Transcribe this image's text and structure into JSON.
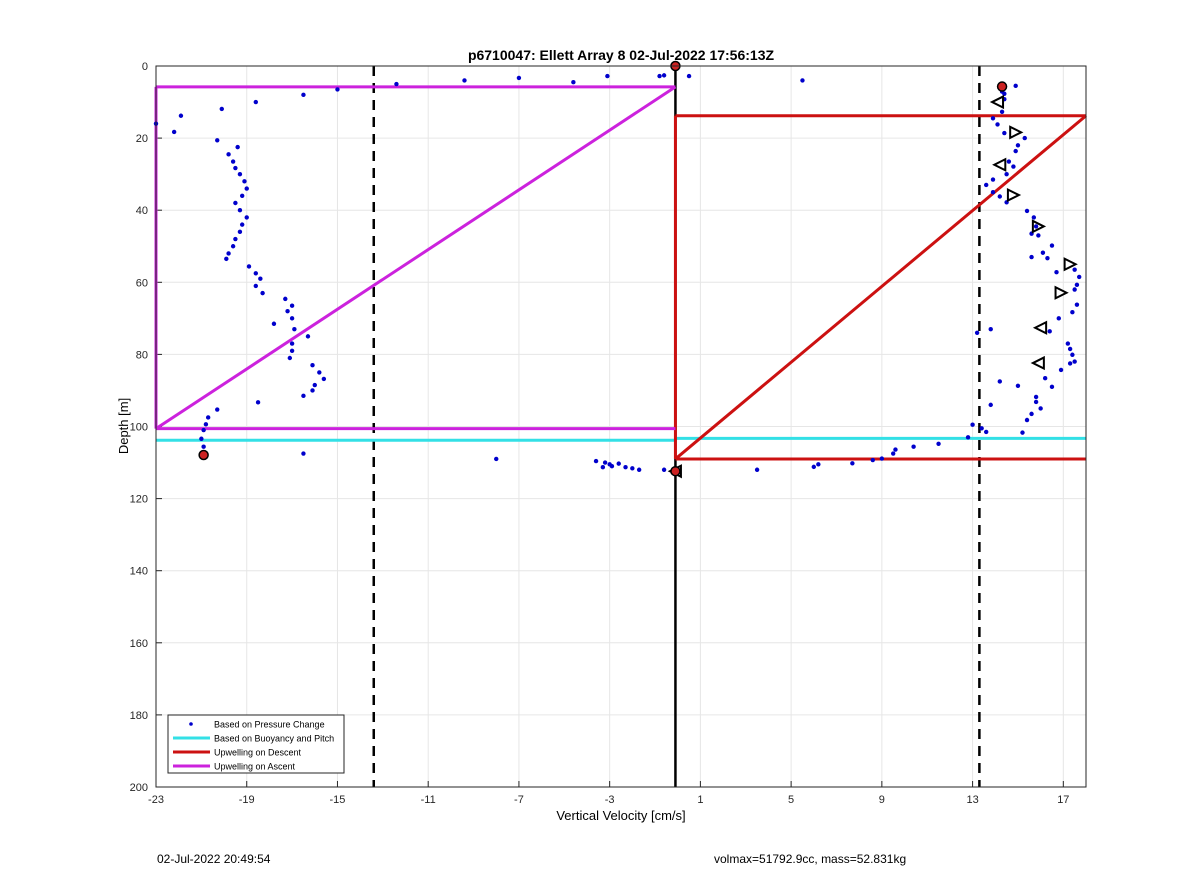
{
  "chart_data": {
    "type": "scatter",
    "title": "p6710047: Ellett Array 8 02-Jul-2022 17:56:13Z",
    "xlabel": "Vertical Velocity [cm/s]",
    "ylabel": "Depth [m]",
    "xlim": [
      -23,
      18
    ],
    "ylim": [
      0,
      200
    ],
    "y_reversed": true,
    "grid": true,
    "xticks": [
      -23,
      -19,
      -15,
      -11,
      -7,
      -3,
      1,
      5,
      9,
      13,
      17
    ],
    "yticks": [
      0,
      20,
      40,
      60,
      80,
      100,
      120,
      140,
      160,
      180,
      200
    ],
    "legend": {
      "placement": "bottom-left",
      "entries": [
        {
          "label": "Based on Pressure Change",
          "color": "#0000cc",
          "style": "dot"
        },
        {
          "label": "Based on Buoyancy and Pitch",
          "color": "#33e0e6",
          "style": "line"
        },
        {
          "label": "Upwelling on Descent",
          "color": "#cc1111",
          "style": "line"
        },
        {
          "label": "Upwelling on Ascent",
          "color": "#cc22dd",
          "style": "line"
        }
      ]
    },
    "reference_lines": [
      {
        "orientation": "vertical",
        "x": -13.4,
        "style": "dashed",
        "color": "#000000"
      },
      {
        "orientation": "vertical",
        "x": 13.3,
        "style": "dashed",
        "color": "#000000"
      },
      {
        "orientation": "vertical",
        "x": -0.1,
        "style": "solid",
        "color": "#000000"
      }
    ],
    "series": [
      {
        "name": "Based on Pressure Change",
        "color": "#0000cc",
        "points": [
          [
            -23,
            16
          ],
          [
            -22.2,
            18.3
          ],
          [
            -21.9,
            13.8
          ],
          [
            -20.1,
            11.9
          ],
          [
            -18.6,
            10
          ],
          [
            -16.5,
            8
          ],
          [
            -15,
            6.5
          ],
          [
            -12.4,
            5
          ],
          [
            -9.4,
            4
          ],
          [
            -7,
            3.3
          ],
          [
            -4.6,
            4.5
          ],
          [
            -3.1,
            2.8
          ],
          [
            -0.8,
            2.8
          ],
          [
            -0.6,
            2.6
          ],
          [
            0.5,
            2.8
          ],
          [
            5.5,
            4
          ],
          [
            14.9,
            5.5
          ],
          [
            -20.3,
            20.6
          ],
          [
            -19.4,
            22.5
          ],
          [
            -19.8,
            24.5
          ],
          [
            -19.6,
            26.5
          ],
          [
            -19.5,
            28.3
          ],
          [
            -19.3,
            30
          ],
          [
            -19.1,
            32
          ],
          [
            -19,
            34
          ],
          [
            -19.2,
            36
          ],
          [
            -19.5,
            38
          ],
          [
            -19.3,
            40
          ],
          [
            -19,
            42
          ],
          [
            -19.2,
            44
          ],
          [
            -19.3,
            46
          ],
          [
            -19.5,
            48
          ],
          [
            -19.6,
            50
          ],
          [
            -19.8,
            52
          ],
          [
            -19.9,
            53.5
          ],
          [
            -18.9,
            55.6
          ],
          [
            -18.6,
            57.5
          ],
          [
            -18.4,
            59
          ],
          [
            -18.6,
            61
          ],
          [
            -18.3,
            63
          ],
          [
            -17.3,
            64.6
          ],
          [
            -17,
            66.5
          ],
          [
            -17.2,
            68
          ],
          [
            -17,
            70
          ],
          [
            -17.8,
            71.5
          ],
          [
            -16.9,
            73
          ],
          [
            -16.3,
            75
          ],
          [
            -17,
            77
          ],
          [
            -17,
            79
          ],
          [
            -17.1,
            81
          ],
          [
            -16.1,
            83
          ],
          [
            -15.8,
            85
          ],
          [
            -15.6,
            86.8
          ],
          [
            -16,
            88.5
          ],
          [
            -16.1,
            90
          ],
          [
            -16.5,
            91.5
          ],
          [
            -18.5,
            93.3
          ],
          [
            -20.3,
            95.3
          ],
          [
            -20.7,
            97.5
          ],
          [
            -20.8,
            99.4
          ],
          [
            -20.9,
            101
          ],
          [
            -21,
            103.4
          ],
          [
            -20.9,
            105.6
          ],
          [
            -16.5,
            107.5
          ],
          [
            -8,
            109
          ],
          [
            -3.6,
            109.6
          ],
          [
            -3.2,
            110
          ],
          [
            -3,
            110.5
          ],
          [
            -2.6,
            110.3
          ],
          [
            -2.9,
            111
          ],
          [
            -2.3,
            111.3
          ],
          [
            -2,
            111.6
          ],
          [
            -3.3,
            111.3
          ],
          [
            -1.7,
            112
          ],
          [
            -0.6,
            112
          ],
          [
            3.5,
            112
          ],
          [
            6,
            111.2
          ],
          [
            6.2,
            110.5
          ],
          [
            7.7,
            110.2
          ],
          [
            8.6,
            109.3
          ],
          [
            9,
            108.9
          ],
          [
            9.5,
            107.5
          ],
          [
            9.6,
            106.4
          ],
          [
            10.4,
            105.6
          ],
          [
            11.5,
            104.8
          ],
          [
            13,
            99.5
          ],
          [
            13.4,
            100.5
          ],
          [
            12.8,
            103
          ],
          [
            13.6,
            101.5
          ],
          [
            13.2,
            74
          ],
          [
            13.8,
            73
          ],
          [
            13.8,
            94
          ],
          [
            14.2,
            87.5
          ],
          [
            15,
            88.7
          ],
          [
            15.2,
            101.7
          ],
          [
            15.4,
            98.2
          ],
          [
            15.6,
            96.5
          ],
          [
            15.8,
            93.2
          ],
          [
            15.8,
            91.8
          ],
          [
            16,
            95
          ],
          [
            16.5,
            89
          ],
          [
            16.2,
            86.6
          ],
          [
            16.9,
            84.3
          ],
          [
            17.3,
            82.5
          ],
          [
            17.5,
            82
          ],
          [
            17.4,
            80.1
          ],
          [
            17.2,
            77
          ],
          [
            17.3,
            78.5
          ],
          [
            16.4,
            73.6
          ],
          [
            16.8,
            70
          ],
          [
            17.4,
            68.3
          ],
          [
            17.6,
            66.2
          ],
          [
            17.5,
            62
          ],
          [
            17.6,
            60.7
          ],
          [
            17.7,
            58.5
          ],
          [
            17.5,
            56.5
          ],
          [
            16.7,
            57.2
          ],
          [
            15.6,
            53
          ],
          [
            16.3,
            53.3
          ],
          [
            16.1,
            51.8
          ],
          [
            16.5,
            49.8
          ],
          [
            15.9,
            47
          ],
          [
            15.6,
            46.5
          ],
          [
            15.8,
            44.5
          ],
          [
            15.7,
            42
          ],
          [
            15.4,
            40.2
          ],
          [
            14.5,
            37.8
          ],
          [
            14.2,
            36.2
          ],
          [
            13.9,
            35
          ],
          [
            13.6,
            33
          ],
          [
            13.9,
            31.5
          ],
          [
            14.5,
            30
          ],
          [
            14.8,
            27.9
          ],
          [
            14.6,
            26.5
          ],
          [
            14.9,
            23.6
          ],
          [
            15,
            22
          ],
          [
            15.3,
            20
          ],
          [
            14.4,
            18.6
          ],
          [
            14.1,
            16.2
          ],
          [
            13.9,
            14.5
          ],
          [
            14.3,
            12.7
          ],
          [
            14.4,
            9.2
          ],
          [
            14.4,
            7.7
          ],
          [
            14.3,
            7.1
          ]
        ]
      },
      {
        "name": "Based on Buoyancy and Pitch",
        "color": "#33e0e6",
        "points": [
          [
            -23,
            103.8
          ],
          [
            -0.1,
            103.8
          ],
          [
            -0.1,
            103.3
          ],
          [
            18,
            103.3
          ]
        ]
      },
      {
        "name": "Upwelling on Descent",
        "color": "#cc1111",
        "points": [
          [
            -0.1,
            13.8
          ],
          [
            18,
            13.8
          ],
          [
            -0.1,
            109
          ],
          [
            18,
            109
          ]
        ]
      },
      {
        "name": "Upwelling on Ascent",
        "color": "#cc22dd",
        "points": [
          [
            -23,
            5.8
          ],
          [
            -0.1,
            5.8
          ],
          [
            -23,
            100.6
          ],
          [
            -0.1,
            100.6
          ]
        ]
      }
    ],
    "triangle_markers": [
      {
        "x": 14.1,
        "y": 10,
        "direction": "left"
      },
      {
        "x": 14.9,
        "y": 18.4,
        "direction": "right"
      },
      {
        "x": 14.2,
        "y": 27.4,
        "direction": "left"
      },
      {
        "x": 14.8,
        "y": 35.8,
        "direction": "right"
      },
      {
        "x": 15.9,
        "y": 44.5,
        "direction": "right"
      },
      {
        "x": 17.3,
        "y": 55,
        "direction": "right"
      },
      {
        "x": 16.9,
        "y": 62.9,
        "direction": "right"
      },
      {
        "x": 16.0,
        "y": 72.6,
        "direction": "left"
      },
      {
        "x": 15.9,
        "y": 82.4,
        "direction": "left"
      },
      {
        "x": -0.1,
        "y": 112.4,
        "direction": "left"
      }
    ],
    "highlight_markers": [
      {
        "x": -0.1,
        "y": 0
      },
      {
        "x": 14.3,
        "y": 5.7
      },
      {
        "x": -20.9,
        "y": 107.9
      },
      {
        "x": -0.1,
        "y": 112.4
      }
    ]
  },
  "footer": {
    "timestamp": "02-Jul-2022 20:49:54",
    "info": "volmax=51792.9cc, mass=52.831kg"
  }
}
